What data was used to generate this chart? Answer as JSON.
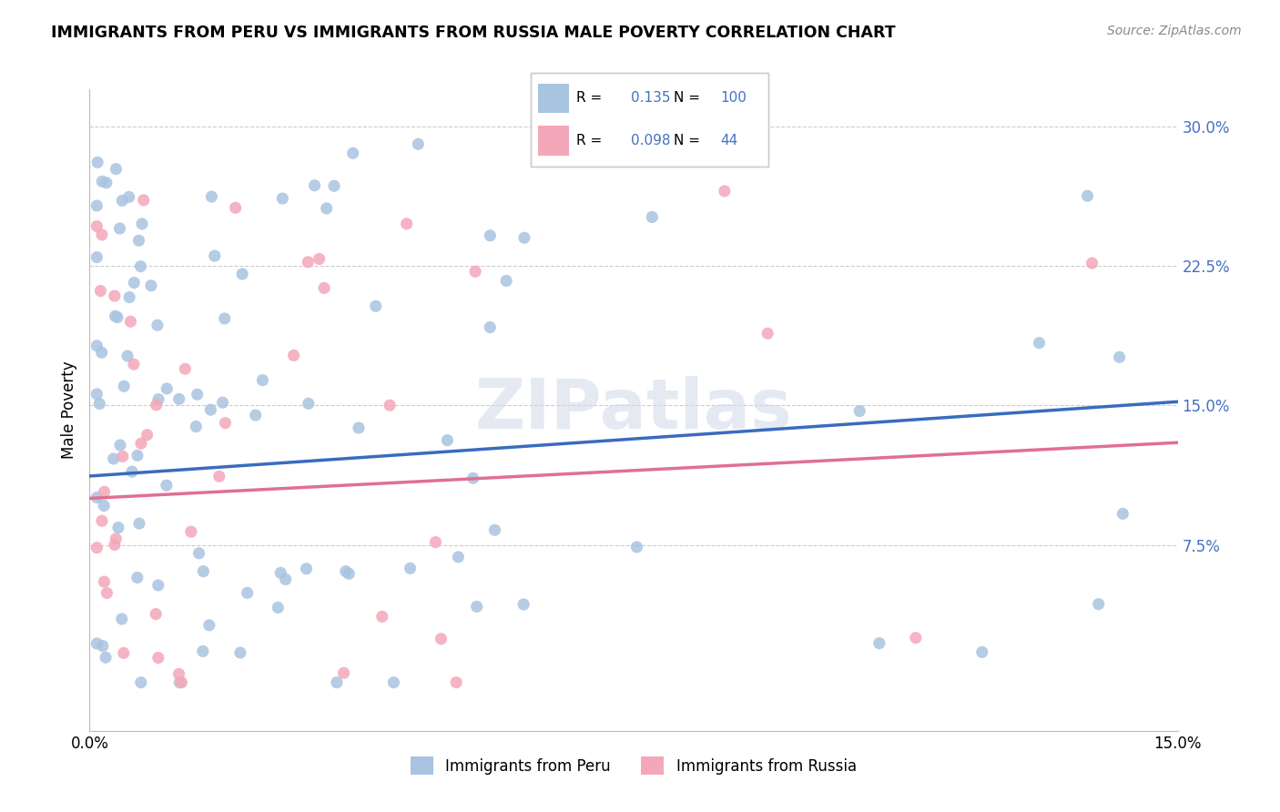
{
  "title": "IMMIGRANTS FROM PERU VS IMMIGRANTS FROM RUSSIA MALE POVERTY CORRELATION CHART",
  "source": "Source: ZipAtlas.com",
  "ylabel": "Male Poverty",
  "ytick_labels": [
    "7.5%",
    "15.0%",
    "22.5%",
    "30.0%"
  ],
  "ytick_values": [
    0.075,
    0.15,
    0.225,
    0.3
  ],
  "xmin": 0.0,
  "xmax": 0.15,
  "ymin": -0.025,
  "ymax": 0.32,
  "legend_peru_R": "0.135",
  "legend_peru_N": "100",
  "legend_russia_R": "0.098",
  "legend_russia_N": "44",
  "color_peru": "#a8c4e0",
  "color_russia": "#f4a7b9",
  "color_line_peru": "#3a6bbf",
  "color_line_russia": "#e07090",
  "watermark": "ZIPatlas",
  "peru_line_x0": 0.0,
  "peru_line_y0": 0.112,
  "peru_line_x1": 0.15,
  "peru_line_y1": 0.152,
  "russia_line_x0": 0.0,
  "russia_line_y0": 0.1,
  "russia_line_x1": 0.15,
  "russia_line_y1": 0.13
}
